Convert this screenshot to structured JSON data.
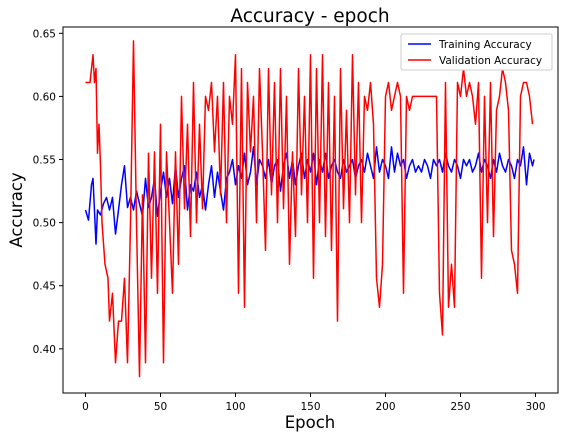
{
  "chart_data": {
    "type": "line",
    "title": "Accuracy - epoch",
    "xlabel": "Epoch",
    "ylabel": "Accuracy",
    "xlim": [
      -15,
      315
    ],
    "ylim": [
      0.365,
      0.655
    ],
    "xticks": [
      0,
      50,
      100,
      150,
      200,
      250,
      300
    ],
    "yticks": [
      0.4,
      0.45,
      0.5,
      0.55,
      0.6,
      0.65
    ],
    "ytick_labels": [
      "0.40",
      "0.45",
      "0.50",
      "0.55",
      "0.60",
      "0.65"
    ],
    "grid": false,
    "legend_position": "top-right",
    "series": [
      {
        "name": "Training Accuracy",
        "color": "#0000ff",
        "points": [
          [
            0,
            0.51
          ],
          [
            2,
            0.502
          ],
          [
            4,
            0.53
          ],
          [
            5,
            0.535
          ],
          [
            7,
            0.483
          ],
          [
            8,
            0.51
          ],
          [
            10,
            0.506
          ],
          [
            12,
            0.515
          ],
          [
            14,
            0.52
          ],
          [
            16,
            0.51
          ],
          [
            18,
            0.52
          ],
          [
            20,
            0.491
          ],
          [
            22,
            0.51
          ],
          [
            24,
            0.53
          ],
          [
            26,
            0.545
          ],
          [
            28,
            0.512
          ],
          [
            30,
            0.52
          ],
          [
            32,
            0.51
          ],
          [
            34,
            0.525
          ],
          [
            36,
            0.515
          ],
          [
            38,
            0.505
          ],
          [
            40,
            0.535
          ],
          [
            42,
            0.512
          ],
          [
            44,
            0.52
          ],
          [
            46,
            0.535
          ],
          [
            48,
            0.505
          ],
          [
            50,
            0.525
          ],
          [
            52,
            0.54
          ],
          [
            54,
            0.52
          ],
          [
            56,
            0.535
          ],
          [
            58,
            0.515
          ],
          [
            60,
            0.545
          ],
          [
            62,
            0.52
          ],
          [
            64,
            0.535
          ],
          [
            66,
            0.545
          ],
          [
            68,
            0.51
          ],
          [
            70,
            0.53
          ],
          [
            72,
            0.525
          ],
          [
            74,
            0.54
          ],
          [
            76,
            0.52
          ],
          [
            78,
            0.53
          ],
          [
            80,
            0.51
          ],
          [
            82,
            0.53
          ],
          [
            84,
            0.545
          ],
          [
            86,
            0.52
          ],
          [
            88,
            0.54
          ],
          [
            90,
            0.525
          ],
          [
            92,
            0.51
          ],
          [
            94,
            0.535
          ],
          [
            96,
            0.54
          ],
          [
            98,
            0.55
          ],
          [
            100,
            0.53
          ],
          [
            102,
            0.545
          ],
          [
            104,
            0.535
          ],
          [
            106,
            0.555
          ],
          [
            108,
            0.53
          ],
          [
            110,
            0.54
          ],
          [
            112,
            0.56
          ],
          [
            114,
            0.53
          ],
          [
            116,
            0.55
          ],
          [
            118,
            0.545
          ],
          [
            120,
            0.535
          ],
          [
            122,
            0.55
          ],
          [
            124,
            0.53
          ],
          [
            126,
            0.545
          ],
          [
            128,
            0.55
          ],
          [
            130,
            0.525
          ],
          [
            132,
            0.545
          ],
          [
            134,
            0.555
          ],
          [
            136,
            0.535
          ],
          [
            138,
            0.55
          ],
          [
            140,
            0.53
          ],
          [
            142,
            0.545
          ],
          [
            144,
            0.555
          ],
          [
            146,
            0.535
          ],
          [
            148,
            0.55
          ],
          [
            150,
            0.54
          ],
          [
            152,
            0.555
          ],
          [
            154,
            0.53
          ],
          [
            156,
            0.55
          ],
          [
            158,
            0.54
          ],
          [
            160,
            0.555
          ],
          [
            162,
            0.535
          ],
          [
            164,
            0.545
          ],
          [
            166,
            0.55
          ],
          [
            168,
            0.54
          ],
          [
            170,
            0.535
          ],
          [
            172,
            0.55
          ],
          [
            174,
            0.54
          ],
          [
            176,
            0.545
          ],
          [
            178,
            0.55
          ],
          [
            180,
            0.535
          ],
          [
            182,
            0.545
          ],
          [
            184,
            0.55
          ],
          [
            186,
            0.54
          ],
          [
            188,
            0.555
          ],
          [
            190,
            0.545
          ],
          [
            192,
            0.535
          ],
          [
            194,
            0.56
          ],
          [
            196,
            0.54
          ],
          [
            198,
            0.55
          ],
          [
            200,
            0.545
          ],
          [
            202,
            0.535
          ],
          [
            204,
            0.56
          ],
          [
            206,
            0.54
          ],
          [
            208,
            0.555
          ],
          [
            210,
            0.545
          ],
          [
            212,
            0.55
          ],
          [
            214,
            0.535
          ],
          [
            216,
            0.545
          ],
          [
            218,
            0.55
          ],
          [
            220,
            0.54
          ],
          [
            222,
            0.545
          ],
          [
            224,
            0.54
          ],
          [
            226,
            0.55
          ],
          [
            228,
            0.545
          ],
          [
            230,
            0.535
          ],
          [
            232,
            0.55
          ],
          [
            234,
            0.545
          ],
          [
            236,
            0.55
          ],
          [
            238,
            0.54
          ],
          [
            240,
            0.555
          ],
          [
            242,
            0.545
          ],
          [
            244,
            0.54
          ],
          [
            246,
            0.55
          ],
          [
            248,
            0.545
          ],
          [
            250,
            0.535
          ],
          [
            252,
            0.55
          ],
          [
            254,
            0.545
          ],
          [
            256,
            0.55
          ],
          [
            258,
            0.54
          ],
          [
            260,
            0.545
          ],
          [
            262,
            0.555
          ],
          [
            264,
            0.54
          ],
          [
            266,
            0.55
          ],
          [
            268,
            0.545
          ],
          [
            270,
            0.535
          ],
          [
            272,
            0.55
          ],
          [
            274,
            0.54
          ],
          [
            276,
            0.555
          ],
          [
            278,
            0.545
          ],
          [
            280,
            0.54
          ],
          [
            282,
            0.55
          ],
          [
            284,
            0.545
          ],
          [
            286,
            0.535
          ],
          [
            288,
            0.55
          ],
          [
            290,
            0.545
          ],
          [
            292,
            0.56
          ],
          [
            294,
            0.53
          ],
          [
            296,
            0.555
          ],
          [
            298,
            0.545
          ],
          [
            299,
            0.55
          ]
        ]
      },
      {
        "name": "Validation Accuracy",
        "color": "#ff0000",
        "points": [
          [
            0,
            0.611
          ],
          [
            3,
            0.611
          ],
          [
            5,
            0.633
          ],
          [
            6,
            0.611
          ],
          [
            7,
            0.622
          ],
          [
            8,
            0.555
          ],
          [
            9,
            0.578
          ],
          [
            10,
            0.545
          ],
          [
            11,
            0.5
          ],
          [
            13,
            0.467
          ],
          [
            15,
            0.456
          ],
          [
            16,
            0.422
          ],
          [
            18,
            0.444
          ],
          [
            20,
            0.389
          ],
          [
            22,
            0.422
          ],
          [
            24,
            0.422
          ],
          [
            26,
            0.456
          ],
          [
            28,
            0.389
          ],
          [
            30,
            0.5
          ],
          [
            32,
            0.644
          ],
          [
            34,
            0.5
          ],
          [
            36,
            0.378
          ],
          [
            38,
            0.522
          ],
          [
            40,
            0.389
          ],
          [
            42,
            0.555
          ],
          [
            44,
            0.456
          ],
          [
            46,
            0.556
          ],
          [
            48,
            0.444
          ],
          [
            50,
            0.578
          ],
          [
            52,
            0.389
          ],
          [
            54,
            0.556
          ],
          [
            56,
            0.5
          ],
          [
            58,
            0.444
          ],
          [
            60,
            0.556
          ],
          [
            62,
            0.467
          ],
          [
            64,
            0.6
          ],
          [
            66,
            0.511
          ],
          [
            68,
            0.578
          ],
          [
            70,
            0.489
          ],
          [
            72,
            0.611
          ],
          [
            74,
            0.5
          ],
          [
            76,
            0.578
          ],
          [
            78,
            0.511
          ],
          [
            80,
            0.6
          ],
          [
            82,
            0.589
          ],
          [
            84,
            0.611
          ],
          [
            86,
            0.556
          ],
          [
            88,
            0.6
          ],
          [
            90,
            0.522
          ],
          [
            92,
            0.611
          ],
          [
            94,
            0.5
          ],
          [
            96,
            0.6
          ],
          [
            98,
            0.578
          ],
          [
            100,
            0.633
          ],
          [
            102,
            0.444
          ],
          [
            104,
            0.622
          ],
          [
            106,
            0.433
          ],
          [
            108,
            0.611
          ],
          [
            110,
            0.556
          ],
          [
            112,
            0.6
          ],
          [
            114,
            0.5
          ],
          [
            116,
            0.622
          ],
          [
            118,
            0.556
          ],
          [
            120,
            0.478
          ],
          [
            122,
            0.622
          ],
          [
            124,
            0.522
          ],
          [
            126,
            0.611
          ],
          [
            128,
            0.5
          ],
          [
            130,
            0.622
          ],
          [
            132,
            0.511
          ],
          [
            134,
            0.6
          ],
          [
            136,
            0.467
          ],
          [
            138,
            0.556
          ],
          [
            140,
            0.489
          ],
          [
            142,
            0.622
          ],
          [
            144,
            0.522
          ],
          [
            146,
            0.6
          ],
          [
            148,
            0.5
          ],
          [
            150,
            0.633
          ],
          [
            152,
            0.456
          ],
          [
            154,
            0.622
          ],
          [
            156,
            0.5
          ],
          [
            158,
            0.633
          ],
          [
            160,
            0.489
          ],
          [
            162,
            0.611
          ],
          [
            164,
            0.478
          ],
          [
            166,
            0.6
          ],
          [
            168,
            0.422
          ],
          [
            170,
            0.622
          ],
          [
            172,
            0.511
          ],
          [
            174,
            0.589
          ],
          [
            176,
            0.5
          ],
          [
            178,
            0.633
          ],
          [
            180,
            0.522
          ],
          [
            182,
            0.611
          ],
          [
            184,
            0.5
          ],
          [
            186,
            0.6
          ],
          [
            188,
            0.589
          ],
          [
            190,
            0.611
          ],
          [
            192,
            0.578
          ],
          [
            194,
            0.456
          ],
          [
            196,
            0.433
          ],
          [
            198,
            0.467
          ],
          [
            200,
            0.6
          ],
          [
            202,
            0.611
          ],
          [
            204,
            0.589
          ],
          [
            206,
            0.6
          ],
          [
            208,
            0.611
          ],
          [
            210,
            0.6
          ],
          [
            212,
            0.444
          ],
          [
            214,
            0.6
          ],
          [
            216,
            0.589
          ],
          [
            218,
            0.6
          ],
          [
            220,
            0.6
          ],
          [
            222,
            0.6
          ],
          [
            224,
            0.6
          ],
          [
            226,
            0.6
          ],
          [
            228,
            0.6
          ],
          [
            230,
            0.6
          ],
          [
            232,
            0.6
          ],
          [
            234,
            0.6
          ],
          [
            236,
            0.444
          ],
          [
            238,
            0.411
          ],
          [
            240,
            0.611
          ],
          [
            242,
            0.433
          ],
          [
            244,
            0.467
          ],
          [
            246,
            0.433
          ],
          [
            248,
            0.611
          ],
          [
            250,
            0.6
          ],
          [
            252,
            0.622
          ],
          [
            254,
            0.6
          ],
          [
            256,
            0.611
          ],
          [
            258,
            0.6
          ],
          [
            260,
            0.578
          ],
          [
            262,
            0.611
          ],
          [
            264,
            0.456
          ],
          [
            266,
            0.6
          ],
          [
            268,
            0.5
          ],
          [
            270,
            0.611
          ],
          [
            272,
            0.489
          ],
          [
            274,
            0.589
          ],
          [
            276,
            0.6
          ],
          [
            278,
            0.622
          ],
          [
            280,
            0.611
          ],
          [
            282,
            0.589
          ],
          [
            284,
            0.478
          ],
          [
            286,
            0.467
          ],
          [
            288,
            0.444
          ],
          [
            290,
            0.6
          ],
          [
            292,
            0.611
          ],
          [
            294,
            0.611
          ],
          [
            296,
            0.6
          ],
          [
            298,
            0.578
          ]
        ]
      }
    ]
  }
}
